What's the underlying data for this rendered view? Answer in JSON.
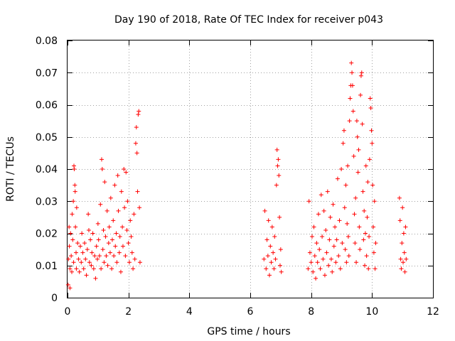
{
  "chart_data": {
    "type": "scatter",
    "title": "Day 190 of 2018, Rate Of TEC Index for receiver p043",
    "xlabel": "GPS time / hours",
    "ylabel": "ROTI / TECUs",
    "xlim": [
      0,
      12
    ],
    "ylim": [
      0,
      0.08
    ],
    "grid": true,
    "marker": "plus",
    "series_color": "#ff0000",
    "x_ticks": [
      "0",
      "2",
      "4",
      "6",
      "8",
      "10",
      "12"
    ],
    "x_tick_values": [
      0,
      2,
      4,
      6,
      8,
      10,
      12
    ],
    "y_ticks": [
      "0",
      "0.01",
      "0.02",
      "0.03",
      "0.04",
      "0.05",
      "0.06",
      "0.07",
      "0.08"
    ],
    "y_tick_values": [
      0,
      0.01,
      0.02,
      0.03,
      0.04,
      0.05,
      0.06,
      0.07,
      0.08
    ],
    "series": [
      {
        "name": "ROTI",
        "points": [
          [
            0.02,
            0.004
          ],
          [
            0.03,
            0.012
          ],
          [
            0.05,
            0.022
          ],
          [
            0.06,
            0.016
          ],
          [
            0.08,
            0.003
          ],
          [
            0.08,
            0.009
          ],
          [
            0.1,
            0.02
          ],
          [
            0.12,
            0.013
          ],
          [
            0.14,
            0.008
          ],
          [
            0.15,
            0.026
          ],
          [
            0.17,
            0.018
          ],
          [
            0.19,
            0.03
          ],
          [
            0.2,
            0.011
          ],
          [
            0.21,
            0.041
          ],
          [
            0.22,
            0.04
          ],
          [
            0.24,
            0.035
          ],
          [
            0.25,
            0.033
          ],
          [
            0.26,
            0.022
          ],
          [
            0.28,
            0.014
          ],
          [
            0.29,
            0.009
          ],
          [
            0.3,
            0.028
          ],
          [
            0.33,
            0.017
          ],
          [
            0.36,
            0.012
          ],
          [
            0.39,
            0.008
          ],
          [
            0.42,
            0.016
          ],
          [
            0.45,
            0.011
          ],
          [
            0.47,
            0.02
          ],
          [
            0.5,
            0.014
          ],
          [
            0.53,
            0.009
          ],
          [
            0.56,
            0.017
          ],
          [
            0.59,
            0.012
          ],
          [
            0.62,
            0.007
          ],
          [
            0.65,
            0.015
          ],
          [
            0.68,
            0.026
          ],
          [
            0.7,
            0.021
          ],
          [
            0.72,
            0.011
          ],
          [
            0.75,
            0.018
          ],
          [
            0.78,
            0.01
          ],
          [
            0.8,
            0.014
          ],
          [
            0.83,
            0.02
          ],
          [
            0.86,
            0.009
          ],
          [
            0.89,
            0.013
          ],
          [
            0.92,
            0.006
          ],
          [
            0.95,
            0.016
          ],
          [
            0.98,
            0.012
          ],
          [
            1.0,
            0.023
          ],
          [
            1.02,
            0.018
          ],
          [
            1.05,
            0.013
          ],
          [
            1.08,
            0.029
          ],
          [
            1.1,
            0.009
          ],
          [
            1.12,
            0.043
          ],
          [
            1.14,
            0.04
          ],
          [
            1.16,
            0.015
          ],
          [
            1.18,
            0.021
          ],
          [
            1.2,
            0.011
          ],
          [
            1.22,
            0.036
          ],
          [
            1.25,
            0.019
          ],
          [
            1.27,
            0.013
          ],
          [
            1.3,
            0.027
          ],
          [
            1.32,
            0.01
          ],
          [
            1.35,
            0.017
          ],
          [
            1.37,
            0.022
          ],
          [
            1.4,
            0.014
          ],
          [
            1.42,
            0.031
          ],
          [
            1.45,
            0.009
          ],
          [
            1.47,
            0.018
          ],
          [
            1.5,
            0.024
          ],
          [
            1.52,
            0.013
          ],
          [
            1.55,
            0.035
          ],
          [
            1.57,
            0.016
          ],
          [
            1.6,
            0.02
          ],
          [
            1.62,
            0.011
          ],
          [
            1.65,
            0.038
          ],
          [
            1.67,
            0.027
          ],
          [
            1.7,
            0.014
          ],
          [
            1.72,
            0.019
          ],
          [
            1.75,
            0.008
          ],
          [
            1.77,
            0.033
          ],
          [
            1.8,
            0.022
          ],
          [
            1.82,
            0.016
          ],
          [
            1.85,
            0.04
          ],
          [
            1.87,
            0.028
          ],
          [
            1.9,
            0.013
          ],
          [
            1.92,
            0.039
          ],
          [
            1.95,
            0.021
          ],
          [
            1.97,
            0.03
          ],
          [
            2.0,
            0.017
          ],
          [
            2.03,
            0.011
          ],
          [
            2.06,
            0.024
          ],
          [
            2.09,
            0.019
          ],
          [
            2.12,
            0.014
          ],
          [
            2.15,
            0.009
          ],
          [
            2.18,
            0.026
          ],
          [
            2.21,
            0.012
          ],
          [
            2.24,
            0.048
          ],
          [
            2.26,
            0.053
          ],
          [
            2.28,
            0.045
          ],
          [
            2.3,
            0.033
          ],
          [
            2.32,
            0.057
          ],
          [
            2.34,
            0.058
          ],
          [
            2.36,
            0.028
          ],
          [
            2.38,
            0.011
          ],
          [
            6.45,
            0.012
          ],
          [
            6.48,
            0.027
          ],
          [
            6.52,
            0.009
          ],
          [
            6.55,
            0.018
          ],
          [
            6.58,
            0.013
          ],
          [
            6.6,
            0.024
          ],
          [
            6.63,
            0.007
          ],
          [
            6.66,
            0.016
          ],
          [
            6.69,
            0.011
          ],
          [
            6.72,
            0.022
          ],
          [
            6.75,
            0.014
          ],
          [
            6.78,
            0.009
          ],
          [
            6.8,
            0.019
          ],
          [
            6.83,
            0.012
          ],
          [
            6.86,
            0.035
          ],
          [
            6.88,
            0.046
          ],
          [
            6.9,
            0.041
          ],
          [
            6.92,
            0.043
          ],
          [
            6.94,
            0.038
          ],
          [
            6.96,
            0.025
          ],
          [
            6.98,
            0.01
          ],
          [
            7.0,
            0.015
          ],
          [
            7.02,
            0.008
          ],
          [
            7.9,
            0.009
          ],
          [
            7.93,
            0.03
          ],
          [
            7.96,
            0.014
          ],
          [
            8.0,
            0.011
          ],
          [
            8.03,
            0.019
          ],
          [
            8.06,
            0.008
          ],
          [
            8.09,
            0.022
          ],
          [
            8.12,
            0.013
          ],
          [
            8.15,
            0.006
          ],
          [
            8.18,
            0.017
          ],
          [
            8.21,
            0.011
          ],
          [
            8.24,
            0.026
          ],
          [
            8.27,
            0.015
          ],
          [
            8.3,
            0.009
          ],
          [
            8.33,
            0.032
          ],
          [
            8.36,
            0.019
          ],
          [
            8.39,
            0.012
          ],
          [
            8.42,
            0.027
          ],
          [
            8.45,
            0.007
          ],
          [
            8.48,
            0.021
          ],
          [
            8.51,
            0.014
          ],
          [
            8.54,
            0.033
          ],
          [
            8.57,
            0.01
          ],
          [
            8.6,
            0.018
          ],
          [
            8.63,
            0.025
          ],
          [
            8.66,
            0.012
          ],
          [
            8.69,
            0.008
          ],
          [
            8.72,
            0.029
          ],
          [
            8.75,
            0.016
          ],
          [
            8.78,
            0.022
          ],
          [
            8.81,
            0.011
          ],
          [
            8.84,
            0.018
          ],
          [
            8.87,
            0.037
          ],
          [
            8.9,
            0.013
          ],
          [
            8.93,
            0.024
          ],
          [
            8.96,
            0.009
          ],
          [
            8.99,
            0.04
          ],
          [
            9.02,
            0.017
          ],
          [
            9.05,
            0.048
          ],
          [
            9.08,
            0.052
          ],
          [
            9.1,
            0.028
          ],
          [
            9.12,
            0.015
          ],
          [
            9.14,
            0.035
          ],
          [
            9.16,
            0.011
          ],
          [
            9.18,
            0.023
          ],
          [
            9.2,
            0.041
          ],
          [
            9.22,
            0.019
          ],
          [
            9.24,
            0.013
          ],
          [
            9.26,
            0.055
          ],
          [
            9.28,
            0.062
          ],
          [
            9.3,
            0.066
          ],
          [
            9.32,
            0.073
          ],
          [
            9.34,
            0.07
          ],
          [
            9.36,
            0.066
          ],
          [
            9.38,
            0.058
          ],
          [
            9.4,
            0.044
          ],
          [
            9.42,
            0.026
          ],
          [
            9.44,
            0.017
          ],
          [
            9.46,
            0.031
          ],
          [
            9.48,
            0.011
          ],
          [
            9.5,
            0.055
          ],
          [
            9.52,
            0.05
          ],
          [
            9.54,
            0.039
          ],
          [
            9.56,
            0.046
          ],
          [
            9.58,
            0.022
          ],
          [
            9.6,
            0.015
          ],
          [
            9.62,
            0.063
          ],
          [
            9.64,
            0.069
          ],
          [
            9.66,
            0.07
          ],
          [
            9.68,
            0.054
          ],
          [
            9.7,
            0.033
          ],
          [
            9.72,
            0.018
          ],
          [
            9.74,
            0.027
          ],
          [
            9.76,
            0.01
          ],
          [
            9.78,
            0.02
          ],
          [
            9.8,
            0.041
          ],
          [
            9.82,
            0.013
          ],
          [
            9.84,
            0.025
          ],
          [
            9.86,
            0.036
          ],
          [
            9.88,
            0.009
          ],
          [
            9.9,
            0.019
          ],
          [
            9.92,
            0.043
          ],
          [
            9.94,
            0.062
          ],
          [
            9.96,
            0.059
          ],
          [
            9.98,
            0.052
          ],
          [
            10.0,
            0.048
          ],
          [
            10.02,
            0.035
          ],
          [
            10.04,
            0.022
          ],
          [
            10.06,
            0.014
          ],
          [
            10.08,
            0.03
          ],
          [
            10.1,
            0.009
          ],
          [
            10.12,
            0.017
          ],
          [
            10.9,
            0.031
          ],
          [
            10.92,
            0.024
          ],
          [
            10.94,
            0.012
          ],
          [
            10.96,
            0.009
          ],
          [
            10.98,
            0.017
          ],
          [
            11.0,
            0.028
          ],
          [
            11.02,
            0.011
          ],
          [
            11.04,
            0.02
          ],
          [
            11.06,
            0.014
          ],
          [
            11.08,
            0.008
          ],
          [
            11.1,
            0.022
          ],
          [
            11.12,
            0.012
          ]
        ]
      }
    ]
  }
}
